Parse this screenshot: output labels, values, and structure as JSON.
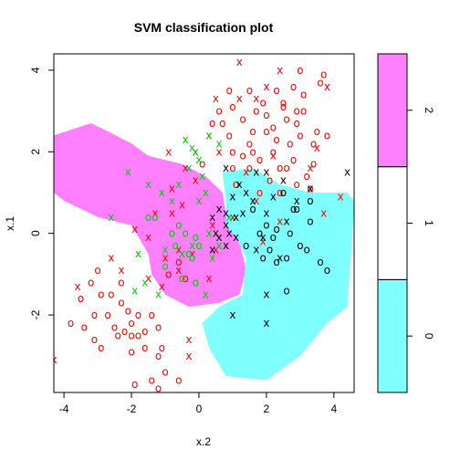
{
  "chart_data": {
    "type": "scatter",
    "title": "SVM classification plot",
    "xlabel": "x.2",
    "ylabel": "x.1",
    "xlim": [
      -4.3,
      4.6
    ],
    "ylim": [
      -3.9,
      4.4
    ],
    "x_ticks": [
      -4,
      -2,
      0,
      2,
      4
    ],
    "y_ticks": [
      -2,
      0,
      2,
      4
    ],
    "x_tick_labels": [
      "-4",
      "-2",
      "0",
      "2",
      "4"
    ],
    "y_tick_labels": [
      "-2",
      "0",
      "2",
      "4"
    ],
    "regions": [
      {
        "class": "2",
        "color": "#FF80FF",
        "polygon": [
          [
            -4.3,
            2.4
          ],
          [
            -3.2,
            2.7
          ],
          [
            -2.7,
            2.5
          ],
          [
            -2.0,
            2.2
          ],
          [
            -1.5,
            1.9
          ],
          [
            -0.5,
            1.7
          ],
          [
            0.2,
            1.4
          ],
          [
            0.7,
            1.0
          ],
          [
            0.8,
            0.5
          ],
          [
            0.85,
            0.2
          ],
          [
            1.2,
            -0.2
          ],
          [
            1.4,
            -0.9
          ],
          [
            1.2,
            -1.5
          ],
          [
            0.6,
            -1.7
          ],
          [
            -0.3,
            -1.8
          ],
          [
            -1.0,
            -1.5
          ],
          [
            -1.4,
            -1.0
          ],
          [
            -1.5,
            -0.5
          ],
          [
            -2.0,
            0.2
          ],
          [
            -3.0,
            0.4
          ],
          [
            -4.0,
            0.8
          ],
          [
            -4.3,
            1.0
          ]
        ]
      },
      {
        "class": "0",
        "color": "#80FFFF",
        "polygon": [
          [
            0.7,
            1.5
          ],
          [
            1.6,
            1.6
          ],
          [
            2.4,
            1.2
          ],
          [
            3.3,
            1.0
          ],
          [
            4.4,
            1.0
          ],
          [
            4.6,
            0.8
          ],
          [
            4.6,
            0.6
          ],
          [
            4.5,
            -0.6
          ],
          [
            4.4,
            -1.8
          ],
          [
            3.8,
            -2.2
          ],
          [
            3.0,
            -3.0
          ],
          [
            2.0,
            -3.6
          ],
          [
            0.8,
            -3.5
          ],
          [
            0.3,
            -2.8
          ],
          [
            0.1,
            -2.2
          ],
          [
            0.6,
            -1.8
          ],
          [
            1.3,
            -1.5
          ],
          [
            1.4,
            -0.6
          ],
          [
            1.1,
            -0.1
          ],
          [
            0.8,
            0.2
          ],
          [
            0.8,
            0.8
          ]
        ]
      }
    ],
    "legend": {
      "position": "right",
      "items": [
        {
          "label": "0",
          "color": "#80FFFF"
        },
        {
          "label": "1",
          "color": "#FFFFFF"
        },
        {
          "label": "2",
          "color": "#FF80FF"
        }
      ]
    },
    "series": [
      {
        "color": "#FF0000",
        "marker": "o",
        "points": [
          [
            -3.4,
            -2.3
          ],
          [
            -3.1,
            -2.6
          ],
          [
            -2.9,
            -1.5
          ],
          [
            -2.6,
            -1.5
          ],
          [
            -2.3,
            -1.2
          ],
          [
            -2.3,
            -1.7
          ],
          [
            -2.4,
            -2.5
          ],
          [
            -2.2,
            -2.4
          ],
          [
            -2.1,
            -1.9
          ],
          [
            -2.0,
            -2.2
          ],
          [
            -1.8,
            -2.5
          ],
          [
            -1.6,
            -2.4
          ],
          [
            -1.4,
            -2.0
          ],
          [
            -1.2,
            -2.3
          ],
          [
            -1.1,
            -2.8
          ],
          [
            -1.2,
            -3.0
          ],
          [
            -1.0,
            -3.4
          ],
          [
            -1.4,
            -3.6
          ],
          [
            -0.9,
            -1.0
          ],
          [
            -0.4,
            -1.1
          ],
          [
            -0.6,
            -0.7
          ],
          [
            -1.8,
            -2.0
          ],
          [
            -2.0,
            -2.5
          ],
          [
            -2.7,
            -2.0
          ],
          [
            -3.1,
            -2.0
          ],
          [
            -3.5,
            -1.6
          ],
          [
            -3.8,
            -2.2
          ],
          [
            -3.2,
            -1.2
          ],
          [
            -3.0,
            -0.9
          ],
          [
            -2.5,
            -2.3
          ],
          [
            -2.9,
            -2.8
          ],
          [
            -2.0,
            -2.9
          ],
          [
            -1.6,
            -2.8
          ],
          [
            -1.2,
            -3.8
          ],
          [
            -0.6,
            -3.6
          ],
          [
            -1.9,
            -3.7
          ],
          [
            1.5,
            2.2
          ],
          [
            2.0,
            2.9
          ],
          [
            2.5,
            3.2
          ],
          [
            3.1,
            3.4
          ],
          [
            1.5,
            3.5
          ],
          [
            1.0,
            3.1
          ],
          [
            0.7,
            2.7
          ],
          [
            0.6,
            3.0
          ],
          [
            0.9,
            2.4
          ],
          [
            1.6,
            2.5
          ],
          [
            1.3,
            2.8
          ],
          [
            2.0,
            2.5
          ],
          [
            2.3,
            2.3
          ],
          [
            2.6,
            2.8
          ],
          [
            3.0,
            2.4
          ],
          [
            3.4,
            2.2
          ],
          [
            3.8,
            2.4
          ],
          [
            3.6,
            3.7
          ],
          [
            3.0,
            4.0
          ],
          [
            2.5,
            3.1
          ],
          [
            2.2,
            2.0
          ],
          [
            1.8,
            1.8
          ],
          [
            1.5,
            1.6
          ],
          [
            2.8,
            1.8
          ],
          [
            3.2,
            1.4
          ],
          [
            1.1,
            1.2
          ],
          [
            2.1,
            1.3
          ],
          [
            2.6,
            1.6
          ],
          [
            3.3,
            1.1
          ],
          [
            1.8,
            1.0
          ],
          [
            2.4,
            1.0
          ],
          [
            0.1,
            1.7
          ],
          [
            0.4,
            2.7
          ],
          [
            1.0,
            2.0
          ],
          [
            1.3,
            1.9
          ],
          [
            2.7,
            2.2
          ],
          [
            2.9,
            3.0
          ],
          [
            3.5,
            2.5
          ],
          [
            1.7,
            3.0
          ],
          [
            2.3,
            3.5
          ],
          [
            2.9,
            2.7
          ],
          [
            3.1,
            3.0
          ],
          [
            3.7,
            3.9
          ],
          [
            0.9,
            3.5
          ],
          [
            1.6,
            2.0
          ],
          [
            1.0,
            1.6
          ],
          [
            2.4,
            1.6
          ],
          [
            2.9,
            1.2
          ],
          [
            3.4,
            1.7
          ],
          [
            2.2,
            2.6
          ],
          [
            1.9,
            3.2
          ],
          [
            2.8,
            3.6
          ]
        ]
      },
      {
        "color": "#FF0000",
        "marker": "x",
        "points": [
          [
            -4.3,
            -3.1
          ],
          [
            -3.6,
            -1.3
          ],
          [
            -2.6,
            -0.6
          ],
          [
            -2.3,
            -0.9
          ],
          [
            -1.5,
            -1.1
          ],
          [
            -1.1,
            -1.3
          ],
          [
            -1.0,
            -0.6
          ],
          [
            -0.6,
            -0.9
          ],
          [
            -0.3,
            -2.6
          ],
          [
            -0.3,
            -3.0
          ],
          [
            -0.4,
            1.6
          ],
          [
            -0.9,
            2.0
          ],
          [
            -0.8,
            1.1
          ],
          [
            -0.5,
            0.7
          ],
          [
            -1.3,
            0.5
          ],
          [
            -1.5,
            -0.1
          ],
          [
            -1.9,
            0.1
          ],
          [
            -0.1,
            1.3
          ],
          [
            0.4,
            0.2
          ],
          [
            0.5,
            -0.4
          ],
          [
            -0.2,
            -0.5
          ],
          [
            1.4,
            1.5
          ],
          [
            1.7,
            0.8
          ],
          [
            1.0,
            0.4
          ],
          [
            1.9,
            -0.2
          ],
          [
            2.4,
            0.3
          ],
          [
            3.3,
            1.6
          ],
          [
            3.7,
            0.5
          ],
          [
            4.2,
            0.9
          ],
          [
            3.5,
            2.1
          ],
          [
            0.5,
            3.3
          ],
          [
            1.7,
            3.3
          ],
          [
            1.2,
            4.2
          ],
          [
            3.8,
            3.6
          ],
          [
            2.4,
            4.0
          ],
          [
            -0.1,
            2.0
          ],
          [
            0.3,
            2.4
          ],
          [
            2.2,
            1.9
          ],
          [
            2.0,
            3.6
          ],
          [
            1.2,
            3.3
          ],
          [
            0.6,
            2.0
          ],
          [
            -0.8,
            0.5
          ],
          [
            -0.6,
            -0.4
          ],
          [
            0.3,
            -1.1
          ]
        ]
      },
      {
        "color": "#00CD00",
        "marker": "o",
        "points": [
          [
            -1.5,
            0.4
          ],
          [
            -1.3,
            0.4
          ],
          [
            -0.6,
            0.2
          ],
          [
            -0.8,
            0.0
          ],
          [
            -0.1,
            -0.1
          ],
          [
            0.0,
            -0.3
          ],
          [
            -0.3,
            -0.5
          ],
          [
            -0.5,
            -1.1
          ],
          [
            -0.1,
            -1.2
          ],
          [
            -1.0,
            -0.8
          ],
          [
            -0.7,
            -0.3
          ],
          [
            -0.2,
            -0.6
          ],
          [
            -0.4,
            0.0
          ]
        ]
      },
      {
        "color": "#00CD00",
        "marker": "x",
        "points": [
          [
            -2.6,
            0.4
          ],
          [
            -2.1,
            1.5
          ],
          [
            -1.5,
            1.2
          ],
          [
            -1.1,
            1.0
          ],
          [
            -0.6,
            1.2
          ],
          [
            -0.3,
            1.6
          ],
          [
            -0.1,
            2.0
          ],
          [
            -0.4,
            2.3
          ],
          [
            -0.2,
            2.1
          ],
          [
            0.0,
            1.8
          ],
          [
            0.3,
            2.4
          ],
          [
            0.6,
            2.2
          ],
          [
            -0.5,
            -0.5
          ],
          [
            -1.0,
            -0.4
          ],
          [
            -1.2,
            -1.5
          ],
          [
            -1.8,
            -0.5
          ],
          [
            -1.9,
            -1.4
          ],
          [
            -0.8,
            0.8
          ],
          [
            0.2,
            1.0
          ],
          [
            0.9,
            0.4
          ],
          [
            0.6,
            -0.3
          ],
          [
            0.2,
            -1.5
          ],
          [
            0.3,
            0.0
          ],
          [
            -0.2,
            -0.3
          ],
          [
            0.1,
            1.4
          ],
          [
            0.4,
            -0.6
          ],
          [
            -1.6,
            -1.2
          ],
          [
            0.0,
            0.8
          ]
        ]
      },
      {
        "color": "#000000",
        "marker": "o",
        "points": [
          [
            2.3,
            0.1
          ],
          [
            2.9,
            0.6
          ],
          [
            3.3,
            0.3
          ],
          [
            2.6,
            -0.6
          ],
          [
            3.0,
            -0.3
          ],
          [
            3.6,
            -0.7
          ],
          [
            3.8,
            -0.9
          ],
          [
            2.6,
            -1.4
          ],
          [
            2.1,
            -0.4
          ],
          [
            1.9,
            -0.6
          ],
          [
            1.8,
            0.0
          ],
          [
            2.7,
            0.0
          ],
          [
            3.2,
            -0.4
          ],
          [
            2.3,
            -0.7
          ],
          [
            2.0,
            0.2
          ],
          [
            2.8,
            0.6
          ],
          [
            3.3,
            0.8
          ],
          [
            2.5,
            1.0
          ],
          [
            1.6,
            0.6
          ],
          [
            1.4,
            -0.3
          ],
          [
            2.2,
            -0.1
          ]
        ]
      },
      {
        "color": "#000000",
        "marker": "x",
        "points": [
          [
            0.8,
            1.6
          ],
          [
            1.2,
            1.2
          ],
          [
            1.4,
            1.0
          ],
          [
            1.1,
            0.4
          ],
          [
            1.0,
            0.9
          ],
          [
            0.8,
            0.5
          ],
          [
            0.6,
            0.6
          ],
          [
            0.4,
            0.4
          ],
          [
            0.8,
            0.2
          ],
          [
            0.6,
            -0.1
          ],
          [
            0.4,
            -0.4
          ],
          [
            0.8,
            -0.3
          ],
          [
            0.5,
            0.0
          ],
          [
            1.1,
            -0.1
          ],
          [
            1.6,
            0.8
          ],
          [
            1.7,
            1.5
          ],
          [
            2.0,
            1.5
          ],
          [
            2.5,
            1.3
          ],
          [
            2.2,
            0.9
          ],
          [
            2.0,
            0.5
          ],
          [
            1.9,
            -0.1
          ],
          [
            2.9,
            0.8
          ],
          [
            3.3,
            1.1
          ],
          [
            2.6,
            0.3
          ],
          [
            2.4,
            -0.6
          ],
          [
            1.7,
            -0.4
          ],
          [
            2.0,
            -1.5
          ],
          [
            1.0,
            -2.0
          ],
          [
            2.0,
            -2.2
          ],
          [
            4.4,
            1.5
          ],
          [
            1.3,
            0.5
          ],
          [
            0.9,
            0.0
          ]
        ]
      }
    ]
  }
}
